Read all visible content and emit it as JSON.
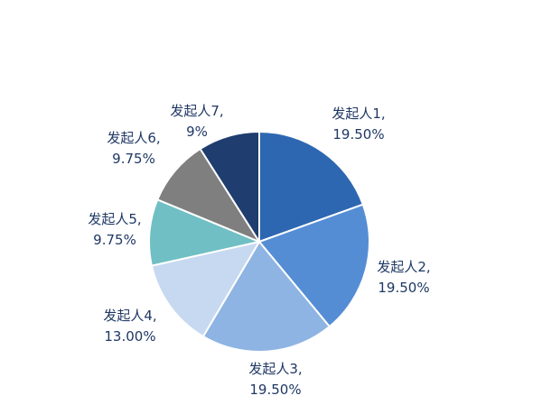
{
  "chart_data": {
    "type": "pie",
    "title": "",
    "legend": "none",
    "slices": [
      {
        "label": "发起人1",
        "value": 19.5,
        "value_label": "19.50%",
        "color": "#2e67b1"
      },
      {
        "label": "发起人2",
        "value": 19.5,
        "value_label": "19.50%",
        "color": "#558dd5"
      },
      {
        "label": "发起人3",
        "value": 19.5,
        "value_label": "19.50%",
        "color": "#8eb4e3"
      },
      {
        "label": "发起人4",
        "value": 13.0,
        "value_label": "13.00%",
        "color": "#c6d9f1"
      },
      {
        "label": "发起人5",
        "value": 9.75,
        "value_label": "9.75%",
        "color": "#70bfc4"
      },
      {
        "label": "发起人6",
        "value": 9.75,
        "value_label": "9.75%",
        "color": "#7f7f7f"
      },
      {
        "label": "发起人7",
        "value": 9.0,
        "value_label": "9%",
        "color": "#1f3d6e"
      }
    ]
  }
}
